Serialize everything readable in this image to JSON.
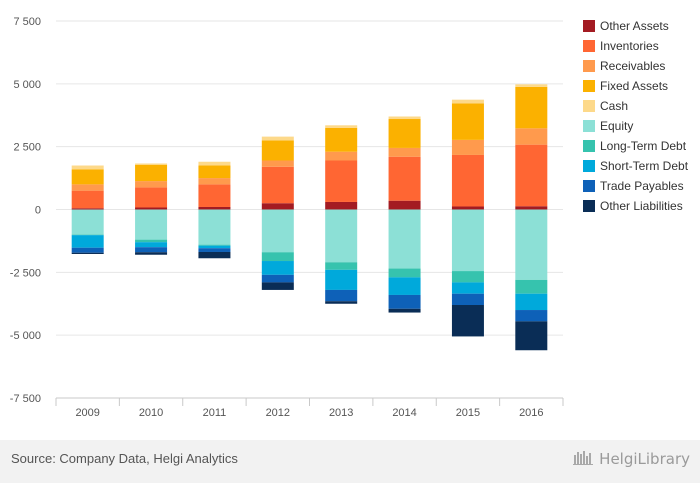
{
  "chart_data": {
    "type": "bar",
    "stacked": true,
    "categories": [
      "2009",
      "2010",
      "2011",
      "2012",
      "2013",
      "2014",
      "2015",
      "2016"
    ],
    "ylim": [
      -7500,
      7500
    ],
    "yticks": [
      7500,
      5000,
      2500,
      0,
      -2500,
      -5000,
      -7500
    ],
    "ytick_labels": [
      "7 500",
      "5 000",
      "2 500",
      "0",
      "-2 500",
      "-5 000",
      "-7 500"
    ],
    "grid": true,
    "legend_position": "right",
    "series": [
      {
        "name": "Other Assets",
        "color": "#a31b22",
        "values": [
          50,
          80,
          100,
          250,
          300,
          350,
          120,
          130
        ]
      },
      {
        "name": "Inventories",
        "color": "#ff6633",
        "values": [
          700,
          800,
          900,
          1450,
          1650,
          1750,
          2050,
          2450
        ]
      },
      {
        "name": "Receivables",
        "color": "#ff9a4d",
        "values": [
          250,
          250,
          250,
          250,
          350,
          350,
          600,
          650
        ]
      },
      {
        "name": "Fixed Assets",
        "color": "#fbb100",
        "values": [
          600,
          650,
          500,
          800,
          950,
          1150,
          1450,
          1650
        ]
      },
      {
        "name": "Cash",
        "color": "#fdd98a",
        "values": [
          150,
          50,
          150,
          150,
          100,
          100,
          150,
          100
        ]
      },
      {
        "name": "Equity",
        "color": "#8ce0d6",
        "values": [
          -1000,
          -1200,
          -1400,
          -1700,
          -2100,
          -2350,
          -2450,
          -2800
        ]
      },
      {
        "name": "Long-Term Debt",
        "color": "#36c3ae",
        "values": [
          -20,
          -100,
          -40,
          -350,
          -300,
          -350,
          -450,
          -550
        ]
      },
      {
        "name": "Short-Term Debt",
        "color": "#00a9db",
        "values": [
          -500,
          -200,
          -100,
          -550,
          -800,
          -700,
          -450,
          -650
        ]
      },
      {
        "name": "Trade Payables",
        "color": "#0e61b8",
        "values": [
          -200,
          -200,
          -150,
          -300,
          -450,
          -550,
          -450,
          -450
        ]
      },
      {
        "name": "Other Liabilities",
        "color": "#0a2d56",
        "values": [
          -50,
          -100,
          -250,
          -300,
          -100,
          -150,
          -1250,
          -1150
        ]
      }
    ]
  },
  "footer": {
    "source": "Source: Company Data, Helgi Analytics",
    "brand": "HelgiLibrary"
  }
}
